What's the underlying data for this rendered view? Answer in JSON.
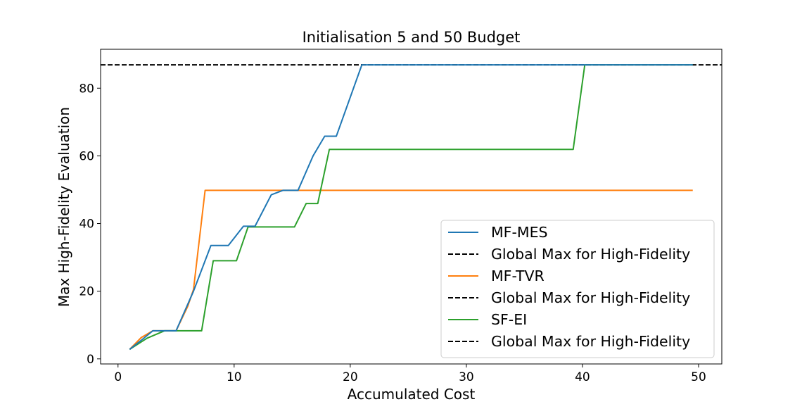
{
  "chart_data": {
    "type": "line",
    "title": "Initialisation 5 and 50 Budget",
    "xlabel": "Accumulated Cost",
    "ylabel": "Max High-Fidelity Evaluation",
    "xlim": [
      -1.5,
      52
    ],
    "ylim": [
      -1.5,
      91.5
    ],
    "xticks": [
      0,
      10,
      20,
      30,
      40,
      50
    ],
    "yticks": [
      0,
      20,
      40,
      60,
      80
    ],
    "grid": false,
    "legend_position": "lower right",
    "legend": [
      {
        "label": "MF-MES",
        "style": "solid",
        "color": "#1f77b4"
      },
      {
        "label": "Global Max for High-Fidelity",
        "style": "dashed",
        "color": "#000000"
      },
      {
        "label": "MF-TVR",
        "style": "solid",
        "color": "#ff7f0e"
      },
      {
        "label": "Global Max for High-Fidelity",
        "style": "dashed",
        "color": "#000000"
      },
      {
        "label": "SF-EI",
        "style": "solid",
        "color": "#2ca02c"
      },
      {
        "label": "Global Max for High-Fidelity",
        "style": "dashed",
        "color": "#000000"
      }
    ],
    "series": [
      {
        "name": "Global Max for High-Fidelity",
        "color": "#000000",
        "style": "dashed",
        "x": [
          -1.5,
          52
        ],
        "y": [
          86.9,
          86.9
        ]
      },
      {
        "name": "MF-TVR",
        "color": "#ff7f0e",
        "style": "solid",
        "x": [
          1,
          2,
          3,
          4,
          5,
          6,
          6.5,
          7.5,
          49.5
        ],
        "y": [
          2.8,
          6.3,
          8.3,
          8.3,
          8.3,
          15.5,
          20.5,
          49.8,
          49.8
        ]
      },
      {
        "name": "SF-EI",
        "color": "#2ca02c",
        "style": "solid",
        "x": [
          1,
          2.5,
          4,
          7.2,
          8.2,
          10.2,
          11.2,
          15.2,
          16.2,
          17.2,
          18.2,
          39.2,
          40.2,
          49.5
        ],
        "y": [
          2.8,
          6.1,
          8.3,
          8.3,
          29,
          29,
          39,
          39,
          45.9,
          45.9,
          61.9,
          61.9,
          86.9,
          86.9
        ]
      },
      {
        "name": "MF-MES",
        "color": "#1f77b4",
        "style": "solid",
        "x": [
          1,
          2,
          3,
          5,
          6.5,
          8,
          9.5,
          10.8,
          11.8,
          13.2,
          14.2,
          15.5,
          16.8,
          17.8,
          18.8,
          21,
          49.5
        ],
        "y": [
          2.8,
          5.5,
          8.3,
          8.3,
          20,
          33.5,
          33.5,
          39.2,
          39.2,
          48.5,
          49.8,
          49.8,
          60,
          65.8,
          65.8,
          86.9,
          86.9
        ]
      }
    ]
  }
}
